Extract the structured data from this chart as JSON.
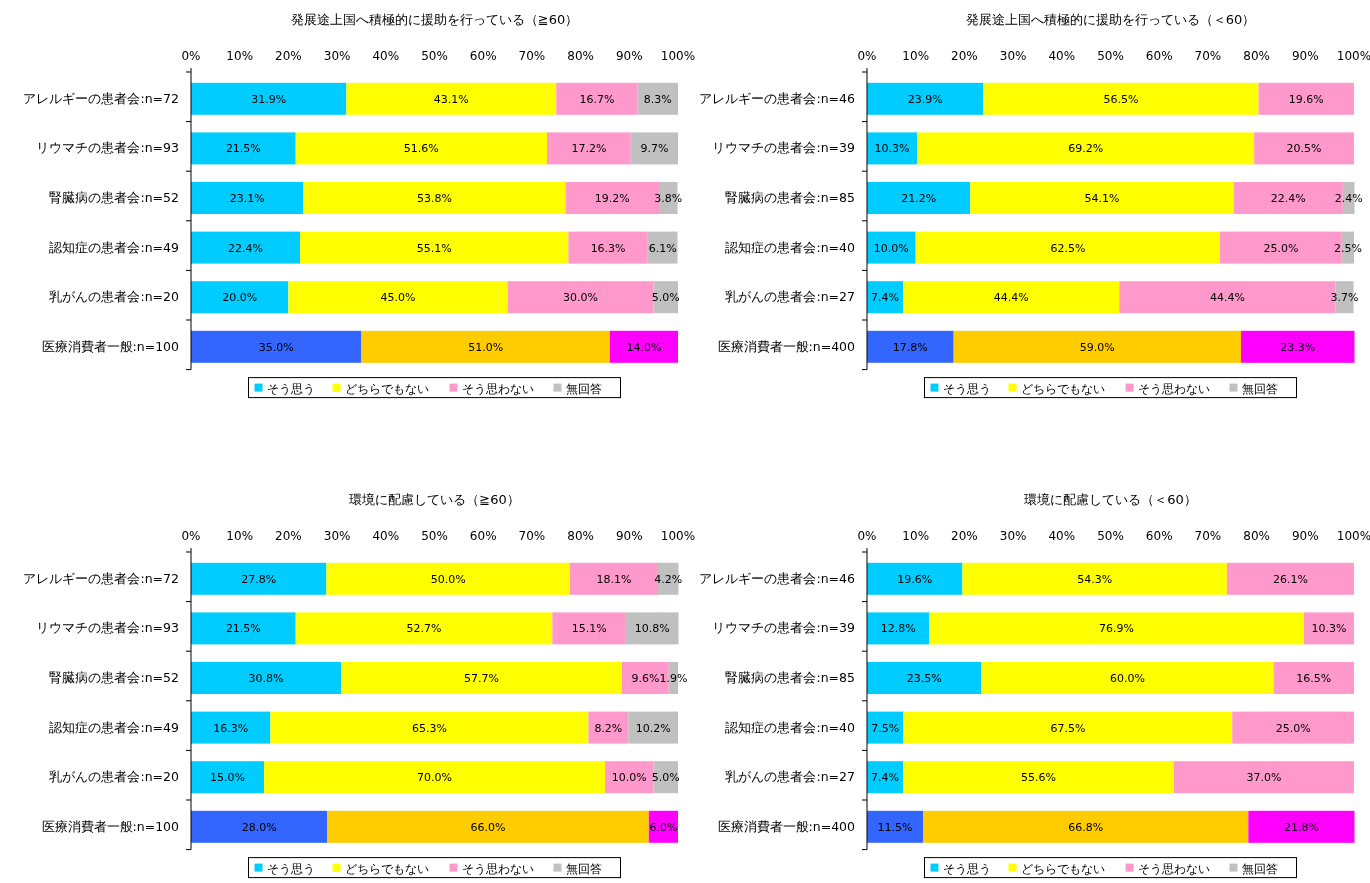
{
  "chart_data": [
    {
      "type": "bar",
      "orientation": "horizontal",
      "stacked": true,
      "title": "発展途上国へ積極的に援助を行っている（≧60）",
      "legend": "bottom",
      "grid": false,
      "categories": [
        "アレルギーの患者会:n=72",
        "リウマチの患者会:n=93",
        "腎臓病の患者会:n=52",
        "認知症の患者会:n=49",
        "乳がんの患者会:n=20",
        "医療消費者一般:n=100"
      ],
      "xlim": [
        0,
        100
      ],
      "xticks": [
        {
          "value": 0,
          "label": "0%"
        },
        {
          "value": 10,
          "label": "10%"
        },
        {
          "value": 20,
          "label": "20%"
        },
        {
          "value": 30,
          "label": "30%"
        },
        {
          "value": 40,
          "label": "40%"
        },
        {
          "value": 50,
          "label": "50%"
        },
        {
          "value": 60,
          "label": "60%"
        },
        {
          "value": 70,
          "label": "70%"
        },
        {
          "value": 80,
          "label": "80%"
        },
        {
          "value": 90,
          "label": "90%"
        },
        {
          "value": 100,
          "label": "100%"
        }
      ],
      "series": [
        {
          "name": "そう思う",
          "color": "#00ccff",
          "colors": [
            "#00ccff",
            "#00ccff",
            "#00ccff",
            "#00ccff",
            "#00ccff",
            "#3366ff"
          ],
          "values": [
            31.9,
            21.5,
            23.1,
            22.4,
            20.0,
            35.0
          ],
          "value_labels": [
            "31.9%",
            "21.5%",
            "23.1%",
            "22.4%",
            "20.0%",
            "35.0%"
          ]
        },
        {
          "name": "どちらでもない",
          "color": "#ffff00",
          "colors": [
            "#ffff00",
            "#ffff00",
            "#ffff00",
            "#ffff00",
            "#ffff00",
            "#ffcc00"
          ],
          "values": [
            43.1,
            51.6,
            53.8,
            55.1,
            45.0,
            51.0
          ],
          "value_labels": [
            "43.1%",
            "51.6%",
            "53.8%",
            "55.1%",
            "45.0%",
            "51.0%"
          ]
        },
        {
          "name": "そう思わない",
          "color": "#ff99cc",
          "colors": [
            "#ff99cc",
            "#ff99cc",
            "#ff99cc",
            "#ff99cc",
            "#ff99cc",
            "#ff00ff"
          ],
          "values": [
            16.7,
            17.2,
            19.2,
            16.3,
            30.0,
            14.0
          ],
          "value_labels": [
            "16.7%",
            "17.2%",
            "19.2%",
            "16.3%",
            "30.0%",
            "14.0%"
          ]
        },
        {
          "name": "無回答",
          "color": "#c0c0c0",
          "colors": [
            "#c0c0c0",
            "#c0c0c0",
            "#c0c0c0",
            "#c0c0c0",
            "#c0c0c0",
            null
          ],
          "values": [
            8.3,
            9.7,
            3.8,
            6.1,
            5.0,
            null
          ],
          "value_labels": [
            "8.3%",
            "9.7%",
            "3.8%",
            "6.1%",
            "5.0%",
            null
          ]
        }
      ]
    },
    {
      "type": "bar",
      "orientation": "horizontal",
      "stacked": true,
      "title": "発展途上国へ積極的に援助を行っている（＜60）",
      "legend": "bottom",
      "grid": false,
      "categories": [
        "アレルギーの患者会:n=46",
        "リウマチの患者会:n=39",
        "腎臓病の患者会:n=85",
        "認知症の患者会:n=40",
        "乳がんの患者会:n=27",
        "医療消費者一般:n=400"
      ],
      "xlim": [
        0,
        100
      ],
      "xticks": [
        {
          "value": 0,
          "label": "0%"
        },
        {
          "value": 10,
          "label": "10%"
        },
        {
          "value": 20,
          "label": "20%"
        },
        {
          "value": 30,
          "label": "30%"
        },
        {
          "value": 40,
          "label": "40%"
        },
        {
          "value": 50,
          "label": "50%"
        },
        {
          "value": 60,
          "label": "60%"
        },
        {
          "value": 70,
          "label": "70%"
        },
        {
          "value": 80,
          "label": "80%"
        },
        {
          "value": 90,
          "label": "90%"
        },
        {
          "value": 100,
          "label": "100%"
        }
      ],
      "series": [
        {
          "name": "そう思う",
          "color": "#00ccff",
          "colors": [
            "#00ccff",
            "#00ccff",
            "#00ccff",
            "#00ccff",
            "#00ccff",
            "#3366ff"
          ],
          "values": [
            23.9,
            10.3,
            21.2,
            10.0,
            7.4,
            17.8
          ],
          "value_labels": [
            "23.9%",
            "10.3%",
            "21.2%",
            "10.0%",
            "7.4%",
            "17.8%"
          ]
        },
        {
          "name": "どちらでもない",
          "color": "#ffff00",
          "colors": [
            "#ffff00",
            "#ffff00",
            "#ffff00",
            "#ffff00",
            "#ffff00",
            "#ffcc00"
          ],
          "values": [
            56.5,
            69.2,
            54.1,
            62.5,
            44.4,
            59.0
          ],
          "value_labels": [
            "56.5%",
            "69.2%",
            "54.1%",
            "62.5%",
            "44.4%",
            "59.0%"
          ]
        },
        {
          "name": "そう思わない",
          "color": "#ff99cc",
          "colors": [
            "#ff99cc",
            "#ff99cc",
            "#ff99cc",
            "#ff99cc",
            "#ff99cc",
            "#ff00ff"
          ],
          "values": [
            19.6,
            20.5,
            22.4,
            25.0,
            44.4,
            23.3
          ],
          "value_labels": [
            "19.6%",
            "20.5%",
            "22.4%",
            "25.0%",
            "44.4%",
            "23.3%"
          ]
        },
        {
          "name": "無回答",
          "color": "#c0c0c0",
          "colors": [
            null,
            null,
            "#c0c0c0",
            "#c0c0c0",
            "#c0c0c0",
            null
          ],
          "values": [
            null,
            null,
            2.4,
            2.5,
            3.7,
            null
          ],
          "value_labels": [
            null,
            null,
            "2.4%",
            "2.5%",
            "3.7%",
            null
          ]
        }
      ]
    },
    {
      "type": "bar",
      "orientation": "horizontal",
      "stacked": true,
      "title": "環境に配慮している（≧60）",
      "legend": "bottom",
      "grid": false,
      "categories": [
        "アレルギーの患者会:n=72",
        "リウマチの患者会:n=93",
        "腎臓病の患者会:n=52",
        "認知症の患者会:n=49",
        "乳がんの患者会:n=20",
        "医療消費者一般:n=100"
      ],
      "xlim": [
        0,
        100
      ],
      "xticks": [
        {
          "value": 0,
          "label": "0%"
        },
        {
          "value": 10,
          "label": "10%"
        },
        {
          "value": 20,
          "label": "20%"
        },
        {
          "value": 30,
          "label": "30%"
        },
        {
          "value": 40,
          "label": "40%"
        },
        {
          "value": 50,
          "label": "50%"
        },
        {
          "value": 60,
          "label": "60%"
        },
        {
          "value": 70,
          "label": "70%"
        },
        {
          "value": 80,
          "label": "80%"
        },
        {
          "value": 90,
          "label": "90%"
        },
        {
          "value": 100,
          "label": "100%"
        }
      ],
      "series": [
        {
          "name": "そう思う",
          "color": "#00ccff",
          "colors": [
            "#00ccff",
            "#00ccff",
            "#00ccff",
            "#00ccff",
            "#00ccff",
            "#3366ff"
          ],
          "values": [
            27.8,
            21.5,
            30.8,
            16.3,
            15.0,
            28.0
          ],
          "value_labels": [
            "27.8%",
            "21.5%",
            "30.8%",
            "16.3%",
            "15.0%",
            "28.0%"
          ]
        },
        {
          "name": "どちらでもない",
          "color": "#ffff00",
          "colors": [
            "#ffff00",
            "#ffff00",
            "#ffff00",
            "#ffff00",
            "#ffff00",
            "#ffcc00"
          ],
          "values": [
            50.0,
            52.7,
            57.7,
            65.3,
            70.0,
            66.0
          ],
          "value_labels": [
            "50.0%",
            "52.7%",
            "57.7%",
            "65.3%",
            "70.0%",
            "66.0%"
          ]
        },
        {
          "name": "そう思わない",
          "color": "#ff99cc",
          "colors": [
            "#ff99cc",
            "#ff99cc",
            "#ff99cc",
            "#ff99cc",
            "#ff99cc",
            "#ff00ff"
          ],
          "values": [
            18.1,
            15.1,
            9.6,
            8.2,
            10.0,
            6.0
          ],
          "value_labels": [
            "18.1%",
            "15.1%",
            "9.6%",
            "8.2%",
            "10.0%",
            "6.0%"
          ]
        },
        {
          "name": "無回答",
          "color": "#c0c0c0",
          "colors": [
            "#c0c0c0",
            "#c0c0c0",
            "#c0c0c0",
            "#c0c0c0",
            "#c0c0c0",
            null
          ],
          "values": [
            4.2,
            10.8,
            1.9,
            10.2,
            5.0,
            null
          ],
          "value_labels": [
            "4.2%",
            "10.8%",
            "1.9%",
            "10.2%",
            "5.0%",
            null
          ]
        }
      ]
    },
    {
      "type": "bar",
      "orientation": "horizontal",
      "stacked": true,
      "title": "環境に配慮している（＜60）",
      "legend": "bottom",
      "grid": false,
      "categories": [
        "アレルギーの患者会:n=46",
        "リウマチの患者会:n=39",
        "腎臓病の患者会:n=85",
        "認知症の患者会:n=40",
        "乳がんの患者会:n=27",
        "医療消費者一般:n=400"
      ],
      "xlim": [
        0,
        100
      ],
      "xticks": [
        {
          "value": 0,
          "label": "0%"
        },
        {
          "value": 10,
          "label": "10%"
        },
        {
          "value": 20,
          "label": "20%"
        },
        {
          "value": 30,
          "label": "30%"
        },
        {
          "value": 40,
          "label": "40%"
        },
        {
          "value": 50,
          "label": "50%"
        },
        {
          "value": 60,
          "label": "60%"
        },
        {
          "value": 70,
          "label": "70%"
        },
        {
          "value": 80,
          "label": "80%"
        },
        {
          "value": 90,
          "label": "90%"
        },
        {
          "value": 100,
          "label": "100%"
        }
      ],
      "series": [
        {
          "name": "そう思う",
          "color": "#00ccff",
          "colors": [
            "#00ccff",
            "#00ccff",
            "#00ccff",
            "#00ccff",
            "#00ccff",
            "#3366ff"
          ],
          "values": [
            19.6,
            12.8,
            23.5,
            7.5,
            7.4,
            11.5
          ],
          "value_labels": [
            "19.6%",
            "12.8%",
            "23.5%",
            "7.5%",
            "7.4%",
            "11.5%"
          ]
        },
        {
          "name": "どちらでもない",
          "color": "#ffff00",
          "colors": [
            "#ffff00",
            "#ffff00",
            "#ffff00",
            "#ffff00",
            "#ffff00",
            "#ffcc00"
          ],
          "values": [
            54.3,
            76.9,
            60.0,
            67.5,
            55.6,
            66.8
          ],
          "value_labels": [
            "54.3%",
            "76.9%",
            "60.0%",
            "67.5%",
            "55.6%",
            "66.8%"
          ]
        },
        {
          "name": "そう思わない",
          "color": "#ff99cc",
          "colors": [
            "#ff99cc",
            "#ff99cc",
            "#ff99cc",
            "#ff99cc",
            "#ff99cc",
            "#ff00ff"
          ],
          "values": [
            26.1,
            10.3,
            16.5,
            25.0,
            37.0,
            21.8
          ],
          "value_labels": [
            "26.1%",
            "10.3%",
            "16.5%",
            "25.0%",
            "37.0%",
            "21.8%"
          ]
        },
        {
          "name": "無回答",
          "color": "#c0c0c0",
          "values": [
            null,
            null,
            null,
            null,
            null,
            null
          ],
          "value_labels": [
            null,
            null,
            null,
            null,
            null,
            null
          ]
        }
      ]
    }
  ]
}
